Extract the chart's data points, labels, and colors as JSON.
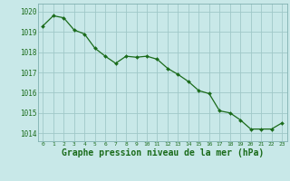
{
  "hours": [
    0,
    1,
    2,
    3,
    4,
    5,
    6,
    7,
    8,
    9,
    10,
    11,
    12,
    13,
    14,
    15,
    16,
    17,
    18,
    19,
    20,
    21,
    22,
    23
  ],
  "pressure": [
    1019.3,
    1019.8,
    1019.7,
    1019.1,
    1018.9,
    1018.2,
    1017.8,
    1017.45,
    1017.8,
    1017.75,
    1017.8,
    1017.65,
    1017.2,
    1016.9,
    1016.55,
    1016.1,
    1015.95,
    1015.1,
    1015.0,
    1014.65,
    1014.2,
    1014.2,
    1014.2,
    1014.5
  ],
  "line_color": "#1a6b1a",
  "marker": "D",
  "marker_size": 2.0,
  "bg_color": "#c8e8e8",
  "grid_color": "#a0c8c8",
  "xlabel": "Graphe pression niveau de la mer (hPa)",
  "xlabel_fontsize": 7,
  "ylim": [
    1013.6,
    1020.4
  ],
  "yticks": [
    1014,
    1015,
    1016,
    1017,
    1018,
    1019,
    1020
  ],
  "xticks": [
    0,
    1,
    2,
    3,
    4,
    5,
    6,
    7,
    8,
    9,
    10,
    11,
    12,
    13,
    14,
    15,
    16,
    17,
    18,
    19,
    20,
    21,
    22,
    23
  ],
  "tick_color": "#1a6b1a",
  "spine_color": "#80b0b0"
}
